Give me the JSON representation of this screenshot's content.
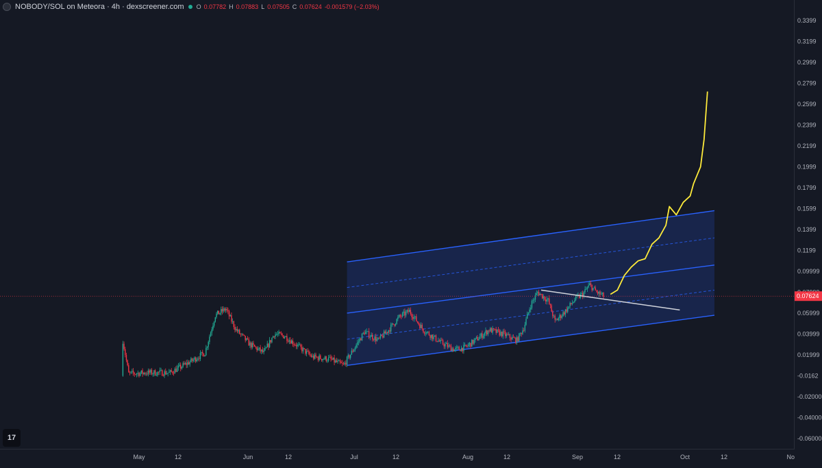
{
  "header": {
    "title": "NOBODY/SOL on Meteora · 4h · dexscreener.com",
    "ohlc": [
      {
        "key": "O",
        "value": "0.07782"
      },
      {
        "key": "H",
        "value": "0.07883"
      },
      {
        "key": "L",
        "value": "0.07505"
      },
      {
        "key": "C",
        "value": "0.07624"
      }
    ],
    "change": "-0.001579 (−2.03%)"
  },
  "current_price_label": "0.07624",
  "logo_text": "17",
  "colors": {
    "background": "#151924",
    "candle_up": "#22ab94",
    "candle_down": "#f23645",
    "channel_line": "#2962ff",
    "channel_fill": "#1c2f6b",
    "projection": "#ffeb3b",
    "trendline": "#d1d4dc",
    "price_tag": "#f23645"
  },
  "chart_data": {
    "type": "candlestick",
    "symbol": "NOBODY/SOL",
    "interval": "4h",
    "y_ticks": [
      "0.3399",
      "0.3199",
      "0.2999",
      "0.2799",
      "0.2599",
      "0.2399",
      "0.2199",
      "0.1999",
      "0.1799",
      "0.1599",
      "0.1399",
      "0.1199",
      "0.09999",
      "0.07999",
      "0.05999",
      "0.03999",
      "0.01999",
      "-0.0162",
      "-0.02000",
      "-0.04000",
      "-0.06000"
    ],
    "x_ticks": [
      "May",
      "12",
      "Jun",
      "12",
      "Jul",
      "12",
      "Aug",
      "12",
      "Sep",
      "12",
      "Oct",
      "12",
      "No"
    ],
    "ylim": [
      -0.07,
      0.355
    ],
    "price_path": [
      [
        "Apr 26",
        0.0,
        0.04
      ],
      [
        "Apr 28",
        0.04,
        0.002
      ],
      [
        "May 3",
        0.002,
        0.003
      ],
      [
        "May 10",
        0.003,
        0.003
      ],
      [
        "May 16",
        0.003,
        0.014
      ],
      [
        "May 20",
        0.014,
        0.022
      ],
      [
        "May 23",
        0.022,
        0.058
      ],
      [
        "May 26",
        0.058,
        0.064
      ],
      [
        "May 29",
        0.064,
        0.044
      ],
      [
        "Jun 2",
        0.044,
        0.03
      ],
      [
        "Jun 6",
        0.03,
        0.022
      ],
      [
        "Jun 9",
        0.022,
        0.04
      ],
      [
        "Jun 12",
        0.04,
        0.038
      ],
      [
        "Jun 16",
        0.038,
        0.028
      ],
      [
        "Jun 20",
        0.028,
        0.018
      ],
      [
        "Jun 25",
        0.018,
        0.016
      ],
      [
        "Jun 29",
        0.016,
        0.01
      ],
      [
        "Jul 2",
        0.01,
        0.026
      ],
      [
        "Jul 5",
        0.026,
        0.042
      ],
      [
        "Jul 9",
        0.042,
        0.034
      ],
      [
        "Jul 12",
        0.034,
        0.044
      ],
      [
        "Jul 15",
        0.044,
        0.056
      ],
      [
        "Jul 18",
        0.056,
        0.062
      ],
      [
        "Jul 22",
        0.062,
        0.044
      ],
      [
        "Jul 27",
        0.044,
        0.032
      ],
      [
        "Jul 31",
        0.032,
        0.025
      ],
      [
        "Aug 3",
        0.025,
        0.027
      ],
      [
        "Aug 6",
        0.027,
        0.034
      ],
      [
        "Aug 10",
        0.034,
        0.044
      ],
      [
        "Aug 14",
        0.044,
        0.04
      ],
      [
        "Aug 18",
        0.04,
        0.034
      ],
      [
        "Aug 20",
        0.034,
        0.046
      ],
      [
        "Aug 22",
        0.046,
        0.068
      ],
      [
        "Aug 24",
        0.068,
        0.08
      ],
      [
        "Aug 27",
        0.08,
        0.072
      ],
      [
        "Aug 29",
        0.072,
        0.052
      ],
      [
        "Sep 1",
        0.052,
        0.062
      ],
      [
        "Sep 4",
        0.062,
        0.074
      ],
      [
        "Sep 6",
        0.074,
        0.078
      ],
      [
        "Sep 8",
        0.078,
        0.087
      ],
      [
        "Sep 10",
        0.087,
        0.08
      ],
      [
        "Sep 12",
        0.08,
        0.0762
      ]
    ],
    "channel": {
      "start_date": "Jun 30",
      "end_date": "Oct 14",
      "lower": [
        0.01,
        0.058
      ],
      "mid": [
        0.06,
        0.106
      ],
      "upper": [
        0.109,
        0.158
      ]
    },
    "trendline": {
      "points": [
        [
          "Aug 25",
          0.082
        ],
        [
          "Oct 4",
          0.063
        ]
      ]
    },
    "projection": {
      "points": [
        [
          "Sep 14",
          0.078
        ],
        [
          "Sep 16",
          0.082
        ],
        [
          "Sep 18",
          0.096
        ],
        [
          "Sep 20",
          0.104
        ],
        [
          "Sep 22",
          0.11
        ],
        [
          "Sep 24",
          0.112
        ],
        [
          "Sep 26",
          0.126
        ],
        [
          "Sep 28",
          0.132
        ],
        [
          "Sep 30",
          0.144
        ],
        [
          "Oct 1",
          0.162
        ],
        [
          "Oct 3",
          0.154
        ],
        [
          "Oct 5",
          0.166
        ],
        [
          "Oct 7",
          0.172
        ],
        [
          "Oct 8",
          0.184
        ],
        [
          "Oct 10",
          0.2
        ],
        [
          "Oct 11",
          0.226
        ],
        [
          "Oct 12",
          0.272
        ]
      ]
    },
    "current_price": 0.07624,
    "legend": "none",
    "grid": false
  }
}
